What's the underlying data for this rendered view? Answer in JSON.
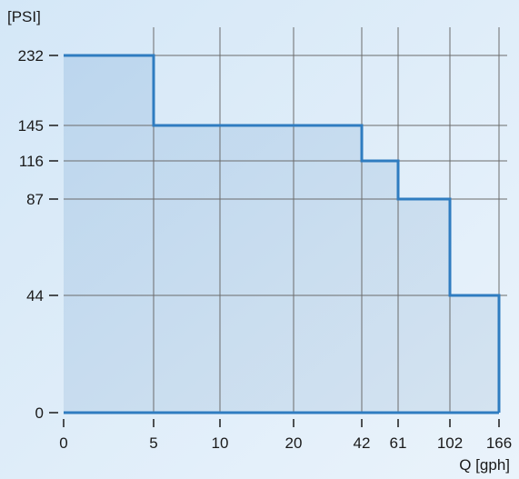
{
  "chart_data": {
    "type": "area",
    "step": true,
    "ylabel": "[PSI]",
    "xlabel": "Q [gph]",
    "x_ticks": [
      "0",
      "5",
      "10",
      "20",
      "42",
      "61",
      "102",
      "166"
    ],
    "y_ticks": [
      "0",
      "44",
      "87",
      "116",
      "145",
      "232"
    ],
    "grid": true,
    "segments": [
      {
        "x_from": "0",
        "x_to": "5",
        "y": 232
      },
      {
        "x_from": "5",
        "x_to": "42",
        "y": 145
      },
      {
        "x_from": "42",
        "x_to": "61",
        "y": 116
      },
      {
        "x_from": "61",
        "x_to": "102",
        "y": 87
      },
      {
        "x_from": "102",
        "x_to": "166",
        "y": 44
      }
    ],
    "colors": {
      "line": "#2f7cc0",
      "fill": "#b7d2ea",
      "grid": "#6b6b6b",
      "axis": "#1a1a1a"
    }
  }
}
